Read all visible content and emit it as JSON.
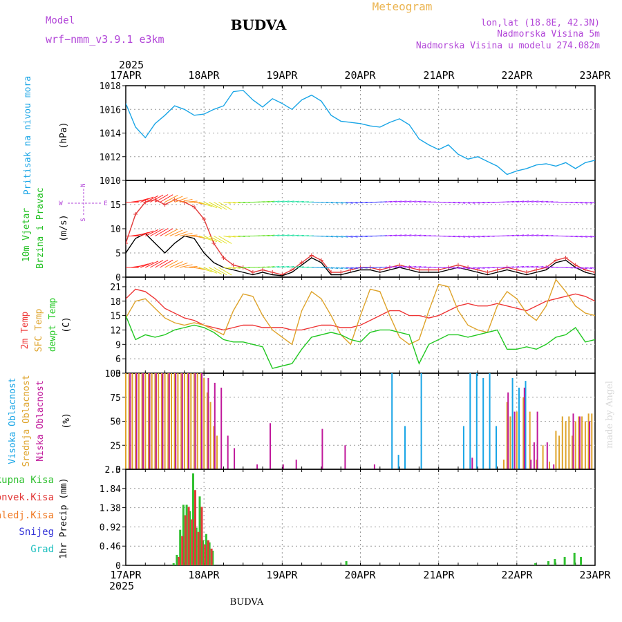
{
  "header": {
    "model_label": "Model",
    "model_name": "wrf−nmm_v3.9.1  e3km",
    "location": "BUDVA",
    "meteogram_label": "Meteogram",
    "lonlat": "lon,lat (18.8E, 42.3N)",
    "elevation": "Nadmorska Visina 5m",
    "model_elevation": "Nadmorska Visina u modelu 274.082m",
    "footer_location": "BUDVA",
    "made_by": "made by Angel"
  },
  "colors": {
    "pressure": "#19a5e6",
    "temp2m": "#ee3535",
    "sfc": "#dea32a",
    "dew": "#20c820",
    "high_cloud": "#19a5e6",
    "mid_cloud": "#dea32a",
    "low_cloud": "#c0189b",
    "total_precip": "#30c030",
    "conv_precip": "#e23a3a",
    "frz_precip": "#f07c27",
    "snow": "#3535d8",
    "hail": "#20c0c0",
    "header_purple": "#b246d8",
    "header_orange": "#ebb450"
  },
  "axes": {
    "year": "2025",
    "dates": [
      "17APR",
      "18APR",
      "19APR",
      "20APR",
      "21APR",
      "22APR",
      "23APR"
    ]
  },
  "chart_data": [
    {
      "type": "line",
      "title": "Pritisak na nivou mora",
      "ylabel": "(hPa)",
      "ylim": [
        1010,
        1018
      ],
      "yticks": [
        "1010",
        "1012",
        "1014",
        "1016",
        "1018"
      ],
      "x_unit": "hours since 17APR 00Z",
      "series": [
        {
          "name": "Pritisak na nivou mora",
          "color": "#19a5e6",
          "x": [
            0,
            3,
            6,
            9,
            12,
            15,
            18,
            21,
            24,
            27,
            30,
            33,
            36,
            39,
            42,
            45,
            48,
            51,
            54,
            57,
            60,
            63,
            66,
            69,
            72,
            75,
            78,
            81,
            84,
            87,
            90,
            93,
            96,
            99,
            102,
            105,
            108,
            111,
            114,
            117,
            120,
            123,
            126,
            129,
            132,
            135,
            138,
            141,
            144
          ],
          "y": [
            1016.5,
            1014.5,
            1013.6,
            1014.8,
            1015.5,
            1016.3,
            1016.0,
            1015.5,
            1015.6,
            1016.0,
            1016.3,
            1017.5,
            1017.6,
            1016.8,
            1016.2,
            1016.9,
            1016.5,
            1016.0,
            1016.8,
            1017.2,
            1016.7,
            1015.5,
            1015.0,
            1014.9,
            1014.8,
            1014.6,
            1014.5,
            1014.9,
            1015.2,
            1014.7,
            1013.5,
            1013.0,
            1012.6,
            1013.0,
            1012.2,
            1011.8,
            1012.0,
            1011.6,
            1011.2,
            1010.5,
            1010.8,
            1011.0,
            1011.3,
            1011.4,
            1011.2,
            1011.5,
            1011.0,
            1011.5,
            1011.7
          ]
        }
      ]
    },
    {
      "type": "line",
      "title": "10m Vjetar Brzina i Pravac",
      "ylabel": "(m/s)",
      "ylim": [
        0,
        20
      ],
      "yticks": [
        "0",
        "5",
        "10",
        "15"
      ],
      "direction_legend": [
        "N",
        "S",
        "W",
        "E"
      ],
      "series": [
        {
          "name": "gust",
          "color": "#e23a3a",
          "x": [
            0,
            3,
            6,
            9,
            12,
            15,
            18,
            21,
            24,
            27,
            30,
            33,
            36,
            39,
            42,
            45,
            48,
            51,
            54,
            57,
            60,
            63,
            66,
            69,
            72,
            75,
            78,
            81,
            84,
            87,
            90,
            93,
            96,
            99,
            102,
            105,
            108,
            111,
            114,
            117,
            120,
            123,
            126,
            129,
            132,
            135,
            138,
            141,
            144
          ],
          "y": [
            7,
            13,
            15.5,
            16,
            15,
            16,
            15.5,
            14.5,
            12,
            7,
            4,
            2.5,
            2,
            1,
            1.5,
            1,
            0.5,
            1.5,
            3,
            4.5,
            3.5,
            1,
            1,
            1.5,
            2,
            2,
            1.5,
            2,
            2.5,
            2,
            1.5,
            1.5,
            1.5,
            2,
            2.5,
            2,
            1.5,
            1,
            1.5,
            2,
            1.5,
            1,
            1.5,
            2,
            3.5,
            4,
            2.5,
            1.5,
            1
          ]
        },
        {
          "name": "speed",
          "color": "#000000",
          "x": [
            0,
            3,
            6,
            9,
            12,
            15,
            18,
            21,
            24,
            27,
            30,
            33,
            36,
            39,
            42,
            45,
            48,
            51,
            54,
            57,
            60,
            63,
            66,
            69,
            72,
            75,
            78,
            81,
            84,
            87,
            90,
            93,
            96,
            99,
            102,
            105,
            108,
            111,
            114,
            117,
            120,
            123,
            126,
            129,
            132,
            135,
            138,
            141,
            144
          ],
          "y": [
            5,
            8,
            9,
            7,
            5,
            7,
            8.5,
            8,
            5,
            3,
            2,
            1.5,
            1,
            0.5,
            1,
            0.5,
            0.3,
            1,
            2.5,
            4,
            3,
            0.5,
            0.5,
            1,
            1.5,
            1.5,
            1,
            1.5,
            2,
            1.5,
            1,
            1,
            1,
            1.5,
            2,
            1.5,
            1,
            0.5,
            1,
            1.5,
            1,
            0.5,
            1,
            1.5,
            3,
            3.5,
            2,
            1,
            0.5
          ]
        }
      ]
    },
    {
      "type": "line",
      "title": "2m Temp / SFC Temp / dewpt Temp",
      "ylabel": "(C)",
      "ylim": [
        3,
        23
      ],
      "yticks": [
        "3",
        "6",
        "9",
        "12",
        "15",
        "18",
        "21"
      ],
      "series": [
        {
          "name": "2m Temp",
          "color": "#ee3535",
          "x": [
            0,
            3,
            6,
            9,
            12,
            15,
            18,
            21,
            24,
            27,
            30,
            33,
            36,
            39,
            42,
            45,
            48,
            51,
            54,
            57,
            60,
            63,
            66,
            69,
            72,
            75,
            78,
            81,
            84,
            87,
            90,
            93,
            96,
            99,
            102,
            105,
            108,
            111,
            114,
            117,
            120,
            123,
            126,
            129,
            132,
            135,
            138,
            141,
            144
          ],
          "y": [
            18.5,
            20.5,
            20,
            18.5,
            16.5,
            15.5,
            14.5,
            14,
            13,
            12.5,
            12,
            12.5,
            13,
            13,
            12.5,
            12.5,
            12.5,
            12,
            12,
            12.5,
            13,
            13,
            12.5,
            12.5,
            13,
            14,
            15,
            16,
            16,
            15,
            15,
            14.5,
            15,
            16,
            17,
            17.5,
            17,
            17,
            17.5,
            17,
            16.5,
            16,
            17,
            18,
            18.5,
            19,
            19.5,
            19,
            18
          ]
        },
        {
          "name": "SFC Temp",
          "color": "#dea32a",
          "x": [
            0,
            3,
            6,
            9,
            12,
            15,
            18,
            21,
            24,
            27,
            30,
            33,
            36,
            39,
            42,
            45,
            48,
            51,
            54,
            57,
            60,
            63,
            66,
            69,
            72,
            75,
            78,
            81,
            84,
            87,
            90,
            93,
            96,
            99,
            102,
            105,
            108,
            111,
            114,
            117,
            120,
            123,
            126,
            129,
            132,
            135,
            138,
            141,
            144
          ],
          "y": [
            14.5,
            18,
            18.5,
            16.5,
            14.5,
            13.5,
            13,
            13.5,
            13,
            12,
            11,
            16,
            19.5,
            19,
            15,
            12,
            10.5,
            9,
            16,
            20,
            18.5,
            15,
            11,
            9,
            15,
            20.5,
            20,
            15,
            10.5,
            9,
            10,
            16,
            21.5,
            21,
            16,
            13,
            12,
            11.5,
            17,
            20,
            18.5,
            15.5,
            14,
            17,
            22.5,
            20,
            17,
            15.5,
            15
          ]
        },
        {
          "name": "dewpt Temp",
          "color": "#20c820",
          "x": [
            0,
            3,
            6,
            9,
            12,
            15,
            18,
            21,
            24,
            27,
            30,
            33,
            36,
            39,
            42,
            45,
            48,
            51,
            54,
            57,
            60,
            63,
            66,
            69,
            72,
            75,
            78,
            81,
            84,
            87,
            90,
            93,
            96,
            99,
            102,
            105,
            108,
            111,
            114,
            117,
            120,
            123,
            126,
            129,
            132,
            135,
            138,
            141,
            144
          ],
          "y": [
            15,
            10,
            11,
            10.5,
            11,
            12,
            12.5,
            13,
            12.5,
            11.5,
            10,
            9.5,
            9.5,
            9,
            8.5,
            4,
            4.5,
            5,
            8,
            10.5,
            11,
            11.5,
            11,
            10,
            9.5,
            11.5,
            12,
            12,
            11.5,
            11,
            5,
            9,
            10,
            11,
            11,
            10.5,
            11,
            11.5,
            12,
            8,
            8,
            8.5,
            8,
            9,
            10.5,
            11,
            12.5,
            9.5,
            10
          ]
        }
      ]
    },
    {
      "type": "bar",
      "title": "Visoka Oblacnost / Srednja Oblacnost / Niska Oblacnost",
      "ylabel": "(%)",
      "ylim": [
        0,
        100
      ],
      "yticks": [
        "0",
        "25",
        "50",
        "75",
        "100"
      ],
      "series": [
        {
          "name": "Visoka Oblacnost",
          "color": "#19a5e6",
          "x": [
            82,
            84,
            86,
            91,
            104,
            106,
            108,
            110,
            112,
            114,
            119,
            121,
            123
          ],
          "values": [
            100,
            15,
            45,
            100,
            45,
            100,
            100,
            95,
            100,
            45,
            95,
            85,
            92
          ]
        },
        {
          "name": "Srednja Oblacnost",
          "color": "#dea32a",
          "x": [
            0,
            1,
            2,
            3,
            4,
            5,
            6,
            7,
            8,
            9,
            10,
            11,
            12,
            13,
            14,
            15,
            16,
            17,
            18,
            19,
            20,
            21,
            22,
            23,
            24,
            25,
            26,
            27,
            28,
            116,
            117,
            118,
            120,
            122,
            124,
            126,
            128,
            130,
            132,
            133,
            134,
            135,
            136,
            137,
            138,
            139,
            140,
            141,
            142,
            143
          ],
          "values": [
            100,
            100,
            100,
            100,
            100,
            100,
            100,
            100,
            100,
            100,
            100,
            100,
            100,
            100,
            100,
            100,
            100,
            100,
            100,
            100,
            100,
            100,
            100,
            100,
            95,
            80,
            70,
            45,
            35,
            10,
            70,
            55,
            60,
            75,
            60,
            10,
            25,
            8,
            40,
            35,
            55,
            50,
            55,
            35,
            50,
            55,
            55,
            50,
            58,
            58
          ]
        },
        {
          "name": "Niska Oblacnost",
          "color": "#c0189b",
          "x": [
            1,
            3,
            5,
            7,
            9,
            11,
            13,
            15,
            17,
            19,
            21,
            23,
            25,
            27,
            29,
            31,
            33,
            40,
            44,
            48,
            52,
            60,
            67,
            76,
            106,
            117,
            119,
            122,
            124,
            125,
            126,
            129,
            131,
            137,
            139,
            142
          ],
          "values": [
            100,
            100,
            100,
            100,
            100,
            100,
            100,
            100,
            100,
            100,
            100,
            100,
            95,
            90,
            85,
            35,
            22,
            5,
            48,
            5,
            10,
            42,
            25,
            5,
            12,
            80,
            60,
            85,
            10,
            28,
            60,
            28,
            5,
            58,
            55,
            50
          ]
        }
      ]
    },
    {
      "type": "bar",
      "title": "Ukupna Kisa / Konvek.Kisa / Zaledj.Kisa / Snijeg / Grad",
      "ylabel": "1hr Precip (mm)",
      "ylim": [
        0,
        2.3
      ],
      "yticks": [
        "0",
        "0.46",
        "0.92",
        "1.38",
        "1.84",
        "2.3"
      ],
      "series": [
        {
          "name": "Ukupna Kisa",
          "color": "#30c030",
          "x": [
            15,
            16,
            17,
            18,
            19,
            20,
            21,
            22,
            23,
            24,
            25,
            26,
            27,
            68,
            126,
            130,
            132,
            135,
            138,
            140
          ],
          "values": [
            0.05,
            0.25,
            0.85,
            1.45,
            1.45,
            1.3,
            2.2,
            0.9,
            1.65,
            0.6,
            0.75,
            0.55,
            0.35,
            0.1,
            0.05,
            0.1,
            0.15,
            0.2,
            0.3,
            0.2
          ]
        },
        {
          "name": "Konvek.Kisa",
          "color": "#e23a3a",
          "x": [
            16,
            17,
            18,
            19,
            20,
            21,
            22,
            23,
            24,
            25,
            26
          ],
          "values": [
            0.2,
            0.7,
            1.2,
            1.4,
            1.1,
            1.8,
            0.8,
            1.4,
            0.5,
            0.6,
            0.4
          ]
        },
        {
          "name": "Zaledj.Kisa",
          "color": "#f07c27",
          "x": [],
          "values": []
        },
        {
          "name": "Snijeg",
          "color": "#3535d8",
          "x": [],
          "values": []
        },
        {
          "name": "Grad",
          "color": "#20c0c0",
          "x": [],
          "values": []
        }
      ]
    }
  ]
}
